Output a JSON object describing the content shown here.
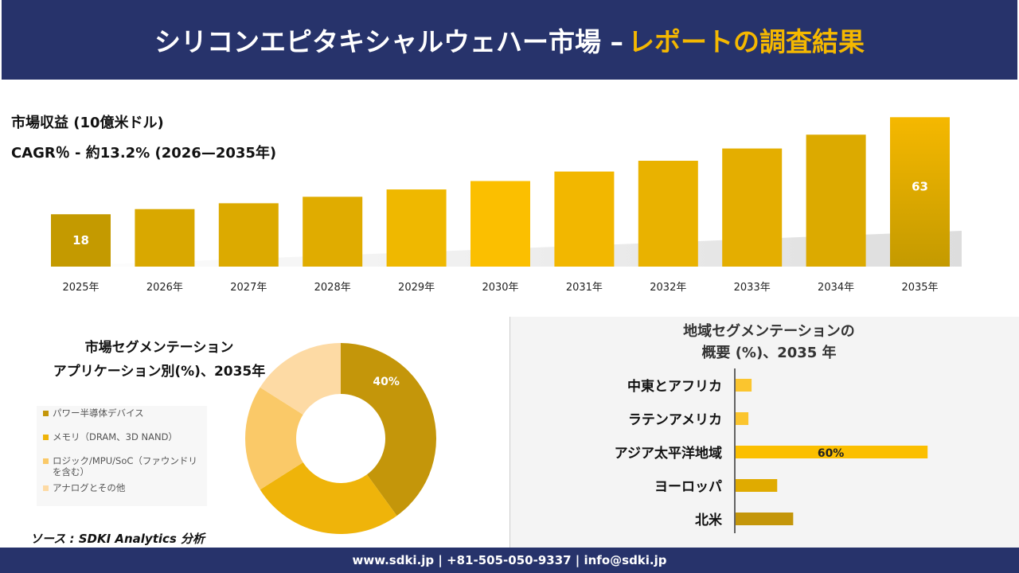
{
  "header": {
    "title": "シリコンエピタキシャルウェハー市場 –",
    "title_accent": "レポートの調査結果"
  },
  "revenue_label": "市場収益 (10億米ドル)",
  "cagr_label": "CAGR％ - 約13.2% (2026—2035年)",
  "chart_data": [
    {
      "type": "bar",
      "categories": [
        "2025年",
        "2026年",
        "2027年",
        "2028年",
        "2029年",
        "2030年",
        "2031年",
        "2032年",
        "2033年",
        "2034年",
        "2035年"
      ],
      "values": [
        18,
        20.4,
        23.1,
        26.1,
        29.5,
        33.4,
        37.8,
        42.8,
        48.5,
        54.9,
        63
      ],
      "data_labels": {
        "0": "18",
        "10": "63"
      },
      "ylabel": "市場収益 (10億米ドル)",
      "colors": [
        "#c49a00",
        "#f5b800"
      ]
    },
    {
      "type": "pie",
      "title": "市場セグメンテーション アプリケーション別(%)、2035年",
      "title_lines": [
        "市場セグメンテーション",
        "アプリケーション別(%)、2035年"
      ],
      "categories": [
        "パワー半導体デバイス",
        "メモリ（DRAM、3D NAND）",
        "ロジック/MPU/SoC（ファウンドリを含む）",
        "アナログとその他"
      ],
      "values": [
        40,
        26,
        18,
        16
      ],
      "data_labels": [
        "40%",
        "",
        "",
        ""
      ],
      "colors": [
        "#c4960a",
        "#efb40a",
        "#fac968",
        "#fddaa4"
      ]
    },
    {
      "type": "bar",
      "orientation": "horizontal",
      "title": "地域セグメンテーションの 概要 (%)、2035 年",
      "title_lines": [
        "地域セグメンテーションの",
        "概要 (%)、2035 年"
      ],
      "categories": [
        "中東とアフリカ",
        "ラテンアメリカ",
        "アジア太平洋地域",
        "ヨーロッパ",
        "北米"
      ],
      "values": [
        5,
        4,
        60,
        13,
        18
      ],
      "data_labels": [
        "",
        "",
        "60%",
        "",
        ""
      ],
      "colors": [
        "#fbc52e",
        "#fbc52e",
        "#fbbf00",
        "#e0ab00",
        "#c4960a"
      ]
    }
  ],
  "source": "ソース : SDKI Analytics 分析",
  "footer": "www.sdki.jp | +81-505-050-9337 | info@sdki.jp"
}
